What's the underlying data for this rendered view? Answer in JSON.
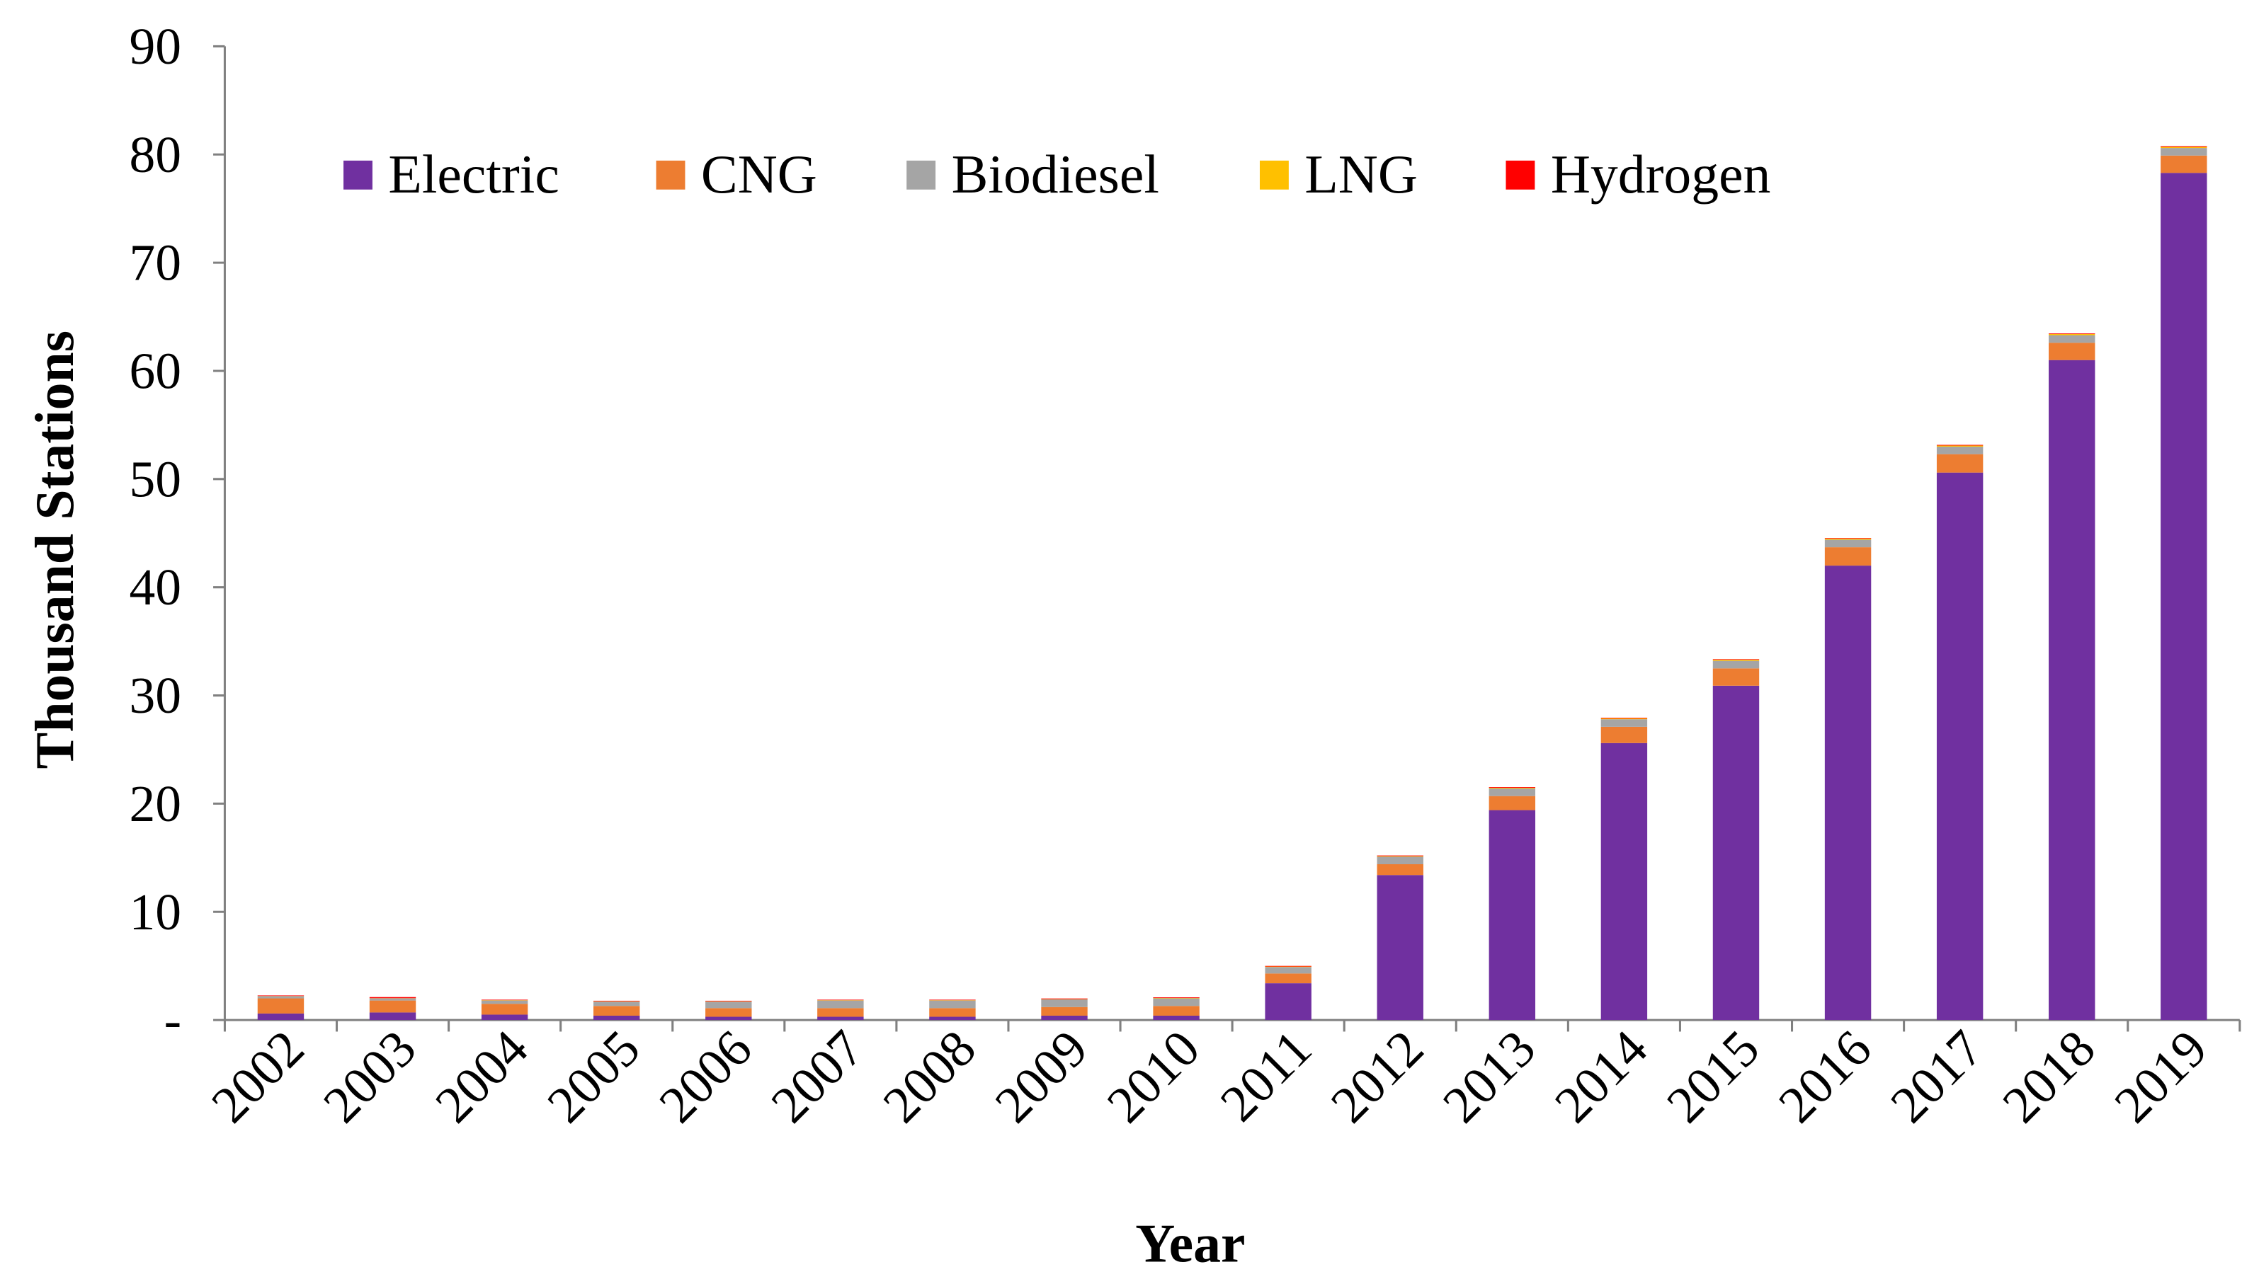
{
  "chart_data": {
    "type": "stacked_bar",
    "x_label": "Year",
    "y_label": "Thousand Stations",
    "categories": [
      "2002",
      "2003",
      "2004",
      "2005",
      "2006",
      "2007",
      "2008",
      "2009",
      "2010",
      "2011",
      "2012",
      "2013",
      "2014",
      "2015",
      "2016",
      "2017",
      "2018",
      "2019"
    ],
    "series": [
      {
        "name": "Electric",
        "color": "#7030a0",
        "values": [
          0.6,
          0.7,
          0.5,
          0.4,
          0.3,
          0.3,
          0.3,
          0.4,
          0.4,
          3.4,
          13.4,
          19.4,
          25.6,
          30.9,
          42.0,
          50.6,
          61.0,
          78.3
        ]
      },
      {
        "name": "CNG",
        "color": "#ed7d31",
        "values": [
          1.4,
          1.1,
          1.0,
          0.9,
          0.8,
          0.8,
          0.8,
          0.8,
          0.9,
          0.9,
          1.0,
          1.3,
          1.5,
          1.6,
          1.7,
          1.7,
          1.6,
          1.6
        ]
      },
      {
        "name": "Biodiesel",
        "color": "#a5a5a5",
        "values": [
          0.2,
          0.2,
          0.3,
          0.4,
          0.6,
          0.7,
          0.7,
          0.7,
          0.7,
          0.6,
          0.7,
          0.7,
          0.7,
          0.7,
          0.7,
          0.7,
          0.7,
          0.7
        ]
      },
      {
        "name": "LNG",
        "color": "#ffc000",
        "values": [
          0.02,
          0.02,
          0.03,
          0.03,
          0.03,
          0.03,
          0.03,
          0.03,
          0.04,
          0.04,
          0.05,
          0.07,
          0.08,
          0.1,
          0.1,
          0.1,
          0.1,
          0.1
        ]
      },
      {
        "name": "Hydrogen",
        "color": "#ff0000",
        "values": [
          0.05,
          0.1,
          0.05,
          0.05,
          0.05,
          0.05,
          0.05,
          0.06,
          0.06,
          0.06,
          0.06,
          0.06,
          0.06,
          0.05,
          0.05,
          0.06,
          0.06,
          0.07
        ]
      }
    ],
    "ylim": [
      0,
      90
    ],
    "yticks": [
      {
        "value": 0,
        "label": "-"
      },
      10,
      20,
      30,
      40,
      50,
      60,
      70,
      80,
      90
    ],
    "grid": false,
    "legend": "top"
  }
}
